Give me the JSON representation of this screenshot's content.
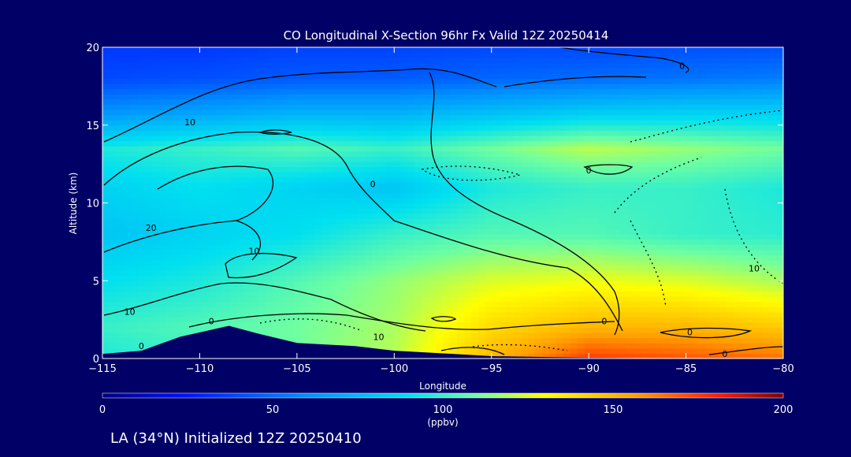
{
  "chart_data": {
    "type": "heatmap",
    "title": "CO Longitudinal X-Section 96hr  Fx Valid 12Z 20250414",
    "xlabel": "Longitude",
    "ylabel": "Altitude (km)",
    "xlim": [
      -115,
      -80
    ],
    "ylim": [
      0,
      20
    ],
    "x_ticks": [
      -115,
      -110,
      -105,
      -100,
      -95,
      -90,
      -85,
      -80
    ],
    "x_tick_labels": [
      "−115",
      "−110",
      "−105",
      "−100",
      "−95",
      "−90",
      "−85",
      "−80"
    ],
    "y_ticks": [
      0,
      5,
      10,
      15,
      20
    ],
    "y_tick_labels": [
      "0",
      "5",
      "10",
      "15",
      "20"
    ],
    "x_grid": [
      -115,
      -110,
      -105,
      -100,
      -95,
      -90,
      -85,
      -80
    ],
    "y_grid": [
      0,
      2,
      5,
      8,
      11,
      13.5,
      16,
      18,
      20
    ],
    "z_grid": [
      [
        95,
        100,
        110,
        120,
        150,
        175,
        170,
        165
      ],
      [
        100,
        105,
        110,
        118,
        140,
        150,
        150,
        145
      ],
      [
        90,
        95,
        105,
        115,
        125,
        128,
        125,
        118
      ],
      [
        80,
        85,
        90,
        100,
        105,
        105,
        100,
        98
      ],
      [
        85,
        90,
        85,
        80,
        95,
        100,
        100,
        95
      ],
      [
        95,
        100,
        105,
        100,
        110,
        120,
        115,
        110
      ],
      [
        60,
        65,
        70,
        70,
        75,
        80,
        82,
        82
      ],
      [
        40,
        42,
        45,
        45,
        48,
        50,
        52,
        55
      ],
      [
        35,
        35,
        38,
        38,
        40,
        40,
        42,
        42
      ]
    ],
    "terrain": [
      [
        -115,
        0.3
      ],
      [
        -113,
        0.5
      ],
      [
        -111,
        1.4
      ],
      [
        -108.5,
        2.1
      ],
      [
        -107,
        1.6
      ],
      [
        -105,
        1.0
      ],
      [
        -102,
        0.8
      ],
      [
        -100,
        0.5
      ],
      [
        -97,
        0.3
      ],
      [
        -95,
        0.15
      ],
      [
        -90,
        0.05
      ],
      [
        -85,
        0
      ],
      [
        -80,
        0
      ]
    ],
    "contour_labels": [
      {
        "text": "10",
        "x": -110.5,
        "y": 15.0
      },
      {
        "text": "20",
        "x": -112.5,
        "y": 8.2
      },
      {
        "text": "10",
        "x": -107.2,
        "y": 6.7
      },
      {
        "text": "10",
        "x": -113.6,
        "y": 2.8
      },
      {
        "text": "0",
        "x": -109.4,
        "y": 2.2
      },
      {
        "text": "0",
        "x": -113.0,
        "y": 0.6
      },
      {
        "text": "0",
        "x": -101.1,
        "y": 11.0
      },
      {
        "text": "0",
        "x": -90.0,
        "y": 11.9
      },
      {
        "text": "0",
        "x": -89.2,
        "y": 2.2
      },
      {
        "text": "0",
        "x": -84.8,
        "y": 1.5
      },
      {
        "text": "0",
        "x": -83.0,
        "y": 0.1
      },
      {
        "text": "10",
        "x": -100.8,
        "y": 1.2
      },
      {
        "text": "0",
        "x": -85.2,
        "y": 18.6
      },
      {
        "text": "10",
        "x": -81.5,
        "y": 5.6
      }
    ],
    "colorbar": {
      "min": 0,
      "max": 200,
      "ticks": [
        0,
        50,
        100,
        150,
        200
      ],
      "tick_labels": [
        "0",
        "50",
        "100",
        "150",
        "200"
      ],
      "unit": "(ppbv)"
    }
  },
  "footer_text": "LA (34°N) Initialized 12Z 20250410",
  "colors": {
    "background": "#000066",
    "terrain": "#000066",
    "contour": "#000000"
  }
}
